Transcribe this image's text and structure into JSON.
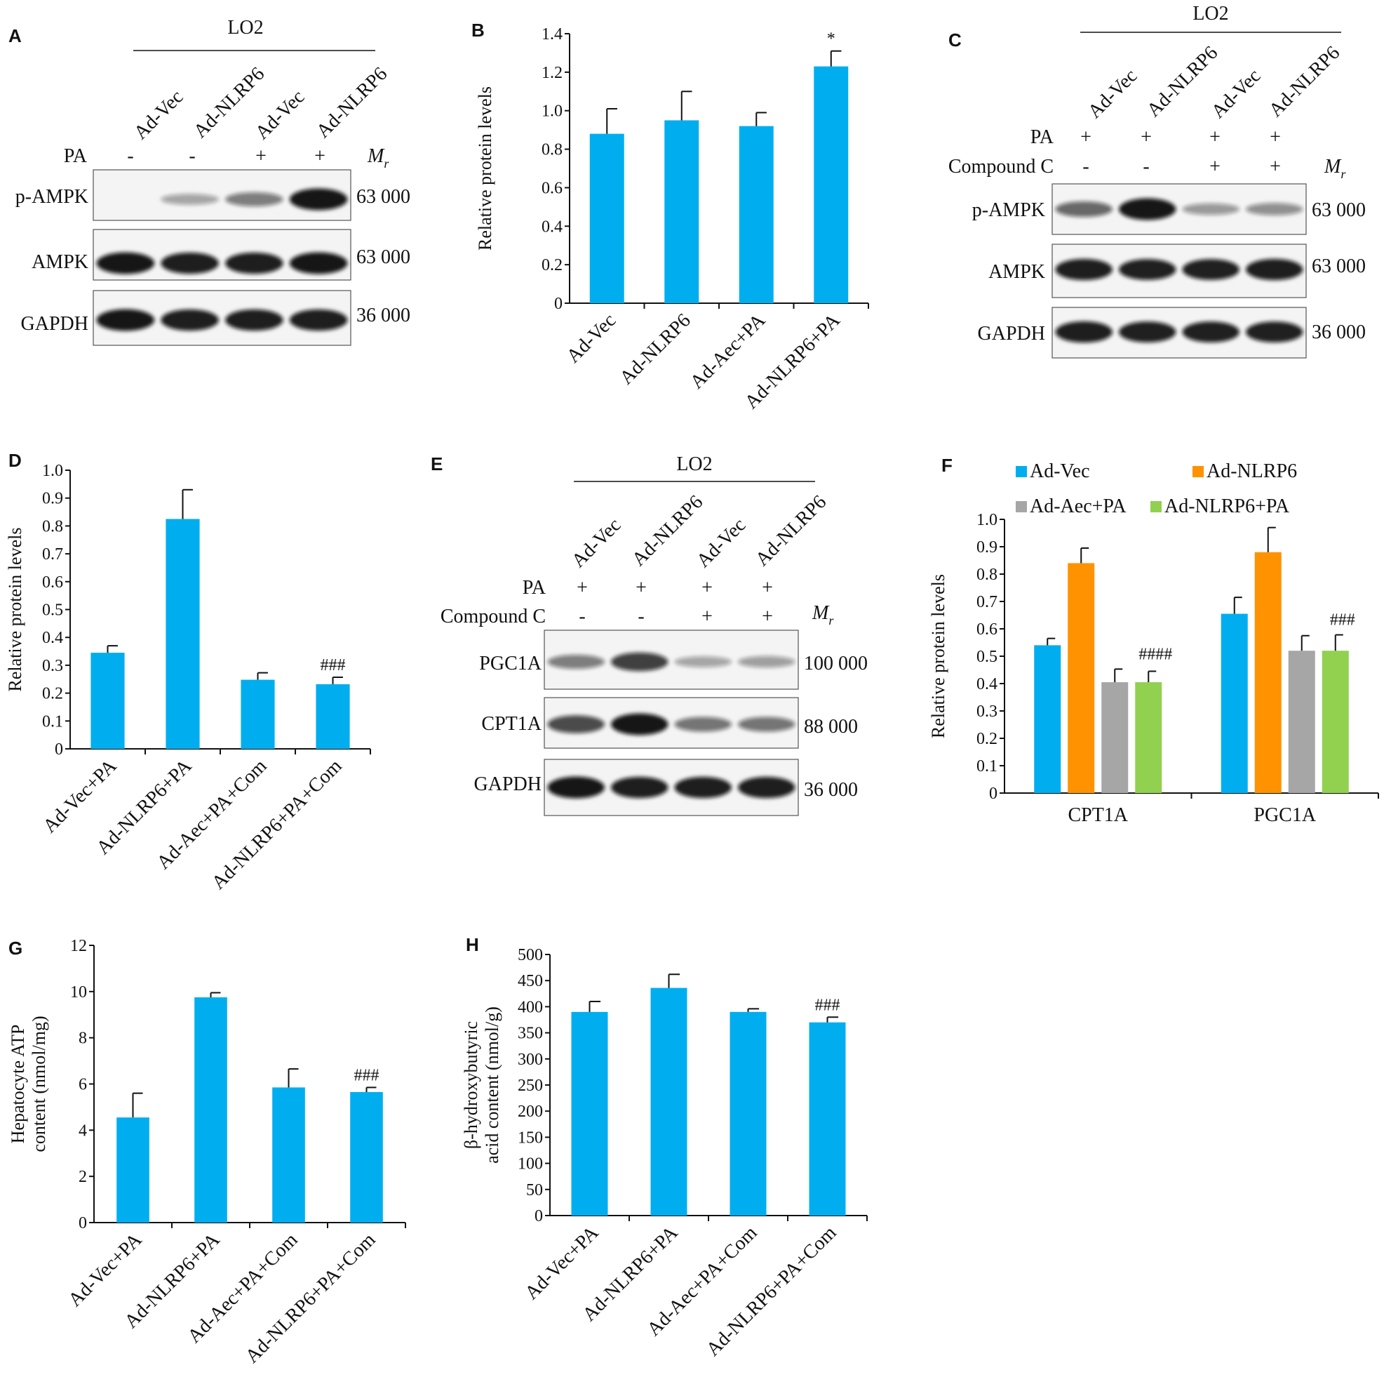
{
  "panel_letters": [
    "A",
    "B",
    "C",
    "D",
    "E",
    "F",
    "G",
    "H"
  ],
  "colors": {
    "bar": "#00aeef",
    "orange": "#ff9200",
    "gray": "#a6a6a6",
    "green": "#92d050",
    "band": "#111111",
    "blot_bg": "#f4f4f4"
  },
  "blot_A": {
    "cell_line": "LO2",
    "lanes": [
      "Ad-Vec",
      "Ad-NLRP6",
      "Ad-Vec",
      "Ad-NLRP6"
    ],
    "conditions": [
      {
        "name": "PA",
        "values": [
          "-",
          "-",
          "+",
          "+"
        ]
      }
    ],
    "mr_label": "M",
    "mr_sub": "r",
    "rows": [
      {
        "name": "p-AMPK",
        "mr": "63 000",
        "intensity": [
          0.0,
          0.25,
          0.45,
          0.95
        ]
      },
      {
        "name": "AMPK",
        "mr": "63 000",
        "intensity": [
          0.95,
          0.92,
          0.92,
          0.95
        ]
      },
      {
        "name": "GAPDH",
        "mr": "36 000",
        "intensity": [
          0.95,
          0.92,
          0.92,
          0.92
        ]
      }
    ]
  },
  "blot_C": {
    "cell_line": "LO2",
    "lanes": [
      "Ad-Vec",
      "Ad-NLRP6",
      "Ad-Vec",
      "Ad-NLRP6"
    ],
    "conditions": [
      {
        "name": "PA",
        "values": [
          "+",
          "+",
          "+",
          "+"
        ]
      },
      {
        "name": "Compound C",
        "values": [
          "-",
          "-",
          "+",
          "+"
        ]
      }
    ],
    "mr_label": "M",
    "mr_sub": "r",
    "rows": [
      {
        "name": "p-AMPK",
        "mr": "63 000",
        "intensity": [
          0.55,
          0.95,
          0.3,
          0.35
        ]
      },
      {
        "name": "AMPK",
        "mr": "63 000",
        "intensity": [
          0.92,
          0.9,
          0.9,
          0.92
        ]
      },
      {
        "name": "GAPDH",
        "mr": "36 000",
        "intensity": [
          0.92,
          0.9,
          0.9,
          0.9
        ]
      }
    ]
  },
  "blot_E": {
    "cell_line": "LO2",
    "lanes": [
      "Ad-Vec",
      "Ad-NLRP6",
      "Ad-Vec",
      "Ad-NLRP6"
    ],
    "conditions": [
      {
        "name": "PA",
        "values": [
          "+",
          "+",
          "+",
          "+"
        ]
      },
      {
        "name": "Compound C",
        "values": [
          "-",
          "-",
          "+",
          "+"
        ]
      }
    ],
    "mr_label": "M",
    "mr_sub": "r",
    "rows": [
      {
        "name": "PGC1A",
        "mr": "100 000",
        "intensity": [
          0.45,
          0.75,
          0.25,
          0.28
        ]
      },
      {
        "name": "CPT1A",
        "mr": "88 000",
        "intensity": [
          0.7,
          0.95,
          0.5,
          0.5
        ]
      },
      {
        "name": "GAPDH",
        "mr": "36 000",
        "intensity": [
          0.95,
          0.92,
          0.92,
          0.92
        ]
      }
    ]
  },
  "chart_data": [
    {
      "panel": "B",
      "type": "bar",
      "categories": [
        "Ad-Vec",
        "Ad-NLRP6",
        "Ad-Aec+PA",
        "Ad-NLRP6+PA"
      ],
      "values": [
        0.88,
        0.95,
        0.92,
        1.23
      ],
      "errors": [
        0.13,
        0.15,
        0.07,
        0.08
      ],
      "annotations": [
        "",
        "",
        "",
        "*"
      ],
      "ylabel": "Relative protein levels",
      "ylim": [
        0,
        1.4
      ],
      "yticks": [
        "0",
        "0.2",
        "0.4",
        "0.6",
        "0.8",
        "1.0",
        "1.2",
        "1.4"
      ],
      "grid": false
    },
    {
      "panel": "D",
      "type": "bar",
      "categories": [
        "Ad-Vec+PA",
        "Ad-NLRP6+PA",
        "Ad-Aec+PA+Com",
        "Ad-NLRP6+PA+Com"
      ],
      "values": [
        0.345,
        0.825,
        0.248,
        0.232
      ],
      "errors": [
        0.025,
        0.105,
        0.025,
        0.025
      ],
      "annotations": [
        "",
        "",
        "",
        "###"
      ],
      "ylabel": "Relative protein levels",
      "ylim": [
        0,
        1.0
      ],
      "yticks": [
        "0",
        "0.1",
        "0.2",
        "0.3",
        "0.4",
        "0.5",
        "0.6",
        "0.7",
        "0.8",
        "0.9",
        "1.0"
      ],
      "grid": false
    },
    {
      "panel": "F",
      "type": "bar",
      "categories": [
        "CPT1A",
        "PGC1A"
      ],
      "series": [
        {
          "name": "Ad-Vec",
          "values": [
            0.54,
            0.655
          ],
          "errors": [
            0.025,
            0.06
          ]
        },
        {
          "name": "Ad-NLRP6",
          "values": [
            0.84,
            0.88
          ],
          "errors": [
            0.055,
            0.09
          ]
        },
        {
          "name": "Ad-Aec+PA",
          "values": [
            0.405,
            0.52
          ],
          "errors": [
            0.048,
            0.055
          ]
        },
        {
          "name": "Ad-NLRP6+PA",
          "values": [
            0.405,
            0.52
          ],
          "errors": [
            0.04,
            0.058
          ]
        }
      ],
      "annotations": [
        "####",
        "###"
      ],
      "ylabel": "Relative protein levels",
      "ylim": [
        0,
        1.0
      ],
      "yticks": [
        "0",
        "0.1",
        "0.2",
        "0.3",
        "0.4",
        "0.5",
        "0.6",
        "0.7",
        "0.8",
        "0.9",
        "1.0"
      ],
      "legend": "top",
      "grid": false
    },
    {
      "panel": "G",
      "type": "bar",
      "categories": [
        "Ad-Vec+PA",
        "Ad-NLRP6+PA",
        "Ad-Aec+PA+Com",
        "Ad-NLRP6+PA+Com"
      ],
      "values": [
        4.55,
        9.75,
        5.85,
        5.65
      ],
      "errors": [
        1.05,
        0.2,
        0.8,
        0.2
      ],
      "annotations": [
        "",
        "",
        "",
        "###"
      ],
      "ylabel_lines": [
        "Hepatocyte ATP",
        "content (nmol/mg)"
      ],
      "ylim": [
        0,
        12
      ],
      "yticks": [
        "0",
        "2",
        "4",
        "6",
        "8",
        "10",
        "12"
      ],
      "grid": false
    },
    {
      "panel": "H",
      "type": "bar",
      "categories": [
        "Ad-Vec+PA",
        "Ad-NLRP6+PA",
        "Ad-Aec+PA+Com",
        "Ad-NLRP6+PA+Com"
      ],
      "values": [
        390,
        436,
        390,
        370
      ],
      "errors": [
        20,
        26,
        6,
        10
      ],
      "annotations": [
        "",
        "",
        "",
        "###"
      ],
      "ylabel_lines": [
        "β-hydroxybutyric",
        "acid content (nmol/g)"
      ],
      "ylim": [
        0,
        500
      ],
      "yticks": [
        "0",
        "50",
        "100",
        "150",
        "200",
        "250",
        "300",
        "350",
        "400",
        "450",
        "500"
      ],
      "grid": false
    }
  ]
}
